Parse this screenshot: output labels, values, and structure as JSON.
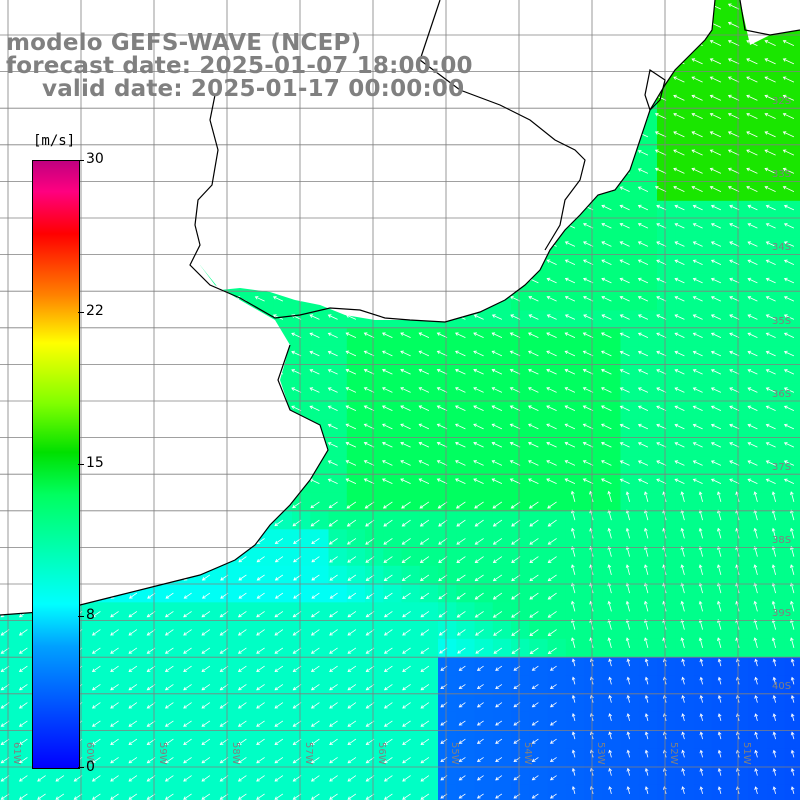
{
  "title": {
    "line1": "modelo GEFS-WAVE (NCEP)",
    "line2": "forecast date: 2025-01-07 18:00:00",
    "line3": "valid date: 2025-01-17 00:00:00"
  },
  "colorbar": {
    "unit": "[m/s]",
    "ticks": [
      "30",
      "22",
      "15",
      "8",
      "0"
    ],
    "range": [
      0,
      30
    ]
  },
  "lat_labels": [
    "32S",
    "33S",
    "34S",
    "35S",
    "36S",
    "37S",
    "38S",
    "39S",
    "40S"
  ],
  "lon_labels": [
    "61W",
    "60W",
    "59W",
    "58W",
    "57W",
    "56W",
    "55W",
    "54W",
    "53W",
    "52W",
    "51W"
  ],
  "colors": {
    "land": "#ffffff",
    "grid": "#808080",
    "coast": "#000000",
    "arrow": "#ffffff",
    "title": "#808080"
  }
}
